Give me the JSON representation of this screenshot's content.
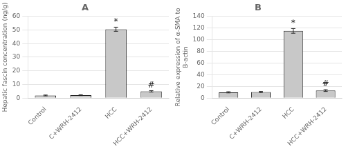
{
  "chart_data": [
    {
      "type": "bar",
      "title": "A",
      "categories": [
        "Control",
        "C+WRH-2412",
        "HCC",
        "HCC+WRH-2412"
      ],
      "values": [
        2.0,
        2.2,
        50.5,
        5.0
      ],
      "errors": [
        0.3,
        0.3,
        1.5,
        0.5
      ],
      "ylabel": "Hepatic fascin concentration (ng/g)",
      "ylim": [
        0,
        60
      ],
      "yticks": [
        0,
        10,
        20,
        30,
        40,
        50,
        60
      ],
      "color": "#c8c8c8",
      "grid": true,
      "annotations": [
        {
          "category": "HCC",
          "text": "*"
        },
        {
          "category": "HCC+WRH-2412",
          "text": "#"
        }
      ]
    },
    {
      "type": "bar",
      "title": "B",
      "categories": [
        "Control",
        "C+WRH-2412",
        "HCC",
        "HCC+WRH-2412"
      ],
      "values": [
        10.0,
        10.5,
        115.0,
        13.0
      ],
      "errors": [
        1.0,
        1.0,
        4.0,
        1.5
      ],
      "ylabel": "Relative expression of α-SMA to\nB-actin",
      "ylim": [
        0,
        140
      ],
      "yticks": [
        0,
        20,
        40,
        60,
        80,
        100,
        120,
        140
      ],
      "color": "#c8c8c8",
      "grid": true,
      "annotations": [
        {
          "category": "HCC",
          "text": "*"
        },
        {
          "category": "HCC+WRH-2412",
          "text": "#"
        }
      ]
    }
  ]
}
